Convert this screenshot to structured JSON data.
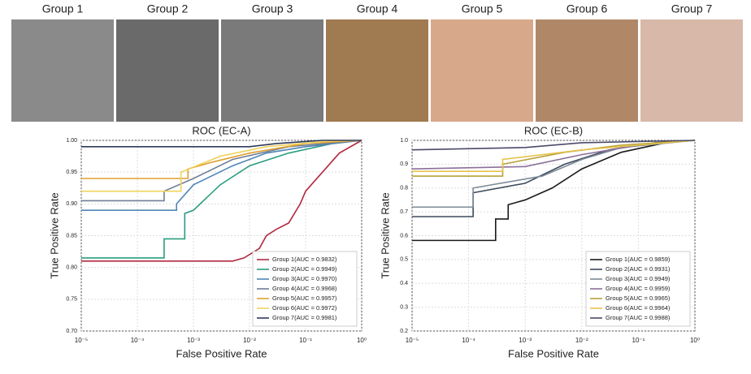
{
  "groups": [
    "Group 1",
    "Group 2",
    "Group 3",
    "Group 4",
    "Group 5",
    "Group 6",
    "Group 7"
  ],
  "chart_data": [
    {
      "type": "line",
      "title": "ROC (EC-A)",
      "xlabel": "False Positive Rate",
      "ylabel": "True Positive Rate",
      "xscale": "log",
      "xlim": [
        1e-05,
        1
      ],
      "ylim": [
        0.7,
        1.0
      ],
      "grid": true,
      "legend": "lower right",
      "xticks": [
        {
          "value": 1e-05,
          "label": "10⁻⁵"
        },
        {
          "value": 0.0001,
          "label": "10⁻⁴"
        },
        {
          "value": 0.001,
          "label": "10⁻³"
        },
        {
          "value": 0.01,
          "label": "10⁻²"
        },
        {
          "value": 0.1,
          "label": "10⁻¹"
        },
        {
          "value": 1,
          "label": "10⁰"
        }
      ],
      "yticks": [
        {
          "value": 0.7,
          "label": "0.70"
        },
        0.75,
        {
          "value": 0.8,
          "label": "0.80"
        },
        0.85,
        {
          "value": 0.9,
          "label": "0.90"
        },
        0.95,
        {
          "value": 1.0,
          "label": "1.00"
        }
      ],
      "series": [
        {
          "name": "Group 1(AUC = 0.9832)",
          "color": "#b3283f",
          "x": [
            1e-05,
            0.005,
            0.008,
            0.015,
            0.02,
            0.03,
            0.05,
            0.08,
            0.1,
            0.2,
            0.4,
            1
          ],
          "values": [
            0.81,
            0.81,
            0.815,
            0.83,
            0.85,
            0.86,
            0.87,
            0.9,
            0.92,
            0.95,
            0.98,
            1.0
          ]
        },
        {
          "name": "Group 2(AUC = 0.9949)",
          "color": "#2a9d7f",
          "x": [
            1e-05,
            0.0003,
            0.0003,
            0.0007,
            0.0007,
            0.001,
            0.003,
            0.01,
            0.05,
            0.3,
            1
          ],
          "values": [
            0.815,
            0.815,
            0.845,
            0.845,
            0.885,
            0.89,
            0.93,
            0.96,
            0.98,
            0.995,
            1.0
          ]
        },
        {
          "name": "Group 3(AUC = 0.9970)",
          "color": "#4f86b8",
          "x": [
            1e-05,
            0.0005,
            0.0005,
            0.001,
            0.005,
            0.02,
            0.1,
            1
          ],
          "values": [
            0.89,
            0.89,
            0.9,
            0.93,
            0.96,
            0.98,
            0.99,
            1.0
          ]
        },
        {
          "name": "Group 4(AUC = 0.9968)",
          "color": "#6f7f96",
          "x": [
            1e-05,
            0.0003,
            0.0003,
            0.001,
            0.005,
            0.05,
            1
          ],
          "values": [
            0.905,
            0.905,
            0.92,
            0.94,
            0.97,
            0.99,
            1.0
          ]
        },
        {
          "name": "Group 5(AUC = 0.9957)",
          "color": "#e0a030",
          "x": [
            1e-05,
            0.0008,
            0.0008,
            0.002,
            0.01,
            0.1,
            1
          ],
          "values": [
            0.94,
            0.94,
            0.955,
            0.965,
            0.98,
            0.995,
            1.0
          ]
        },
        {
          "name": "Group 6(AUC = 0.9972)",
          "color": "#efd35c",
          "x": [
            1e-05,
            0.0006,
            0.0006,
            0.003,
            0.02,
            0.2,
            1
          ],
          "values": [
            0.92,
            0.92,
            0.95,
            0.975,
            0.99,
            0.998,
            1.0
          ]
        },
        {
          "name": "Group 7(AUC = 0.9981)",
          "color": "#2f3a5a",
          "x": [
            1e-05,
            0.01,
            0.03,
            0.2,
            1
          ],
          "values": [
            0.99,
            0.99,
            0.995,
            1.0,
            1.0
          ]
        }
      ]
    },
    {
      "type": "line",
      "title": "ROC (EC-B)",
      "xlabel": "False Positive Rate",
      "ylabel": "True Positive Rate",
      "xscale": "log",
      "xlim": [
        1e-05,
        1
      ],
      "ylim": [
        0.2,
        1.0
      ],
      "grid": true,
      "legend": "lower right",
      "xticks": [
        {
          "value": 1e-05,
          "label": "10⁻⁵"
        },
        {
          "value": 0.0001,
          "label": "10⁻⁴"
        },
        {
          "value": 0.001,
          "label": "10⁻³"
        },
        {
          "value": 0.01,
          "label": "10⁻²"
        },
        {
          "value": 0.1,
          "label": "10⁻¹"
        },
        {
          "value": 1,
          "label": "10⁰"
        }
      ],
      "yticks": [
        0.2,
        0.3,
        0.4,
        0.5,
        0.6,
        0.7,
        0.8,
        0.9,
        {
          "value": 1.0,
          "label": "1.0"
        }
      ],
      "series": [
        {
          "name": "Group 1(AUC = 0.9859)",
          "color": "#1a1a1a",
          "x": [
            1e-05,
            0.0003,
            0.0003,
            0.0005,
            0.0005,
            0.001,
            0.003,
            0.01,
            0.05,
            0.3,
            1
          ],
          "values": [
            0.58,
            0.58,
            0.67,
            0.67,
            0.73,
            0.75,
            0.8,
            0.88,
            0.95,
            0.99,
            1.0
          ]
        },
        {
          "name": "Group 2(AUC = 0.9931)",
          "color": "#3d4a5c",
          "x": [
            1e-05,
            0.00012,
            0.00012,
            0.001,
            0.005,
            0.03,
            0.2,
            1
          ],
          "values": [
            0.68,
            0.68,
            0.78,
            0.82,
            0.9,
            0.96,
            0.99,
            1.0
          ]
        },
        {
          "name": "Group 3(AUC = 0.9949)",
          "color": "#7d8a96",
          "x": [
            1e-05,
            0.00012,
            0.00012,
            0.002,
            0.01,
            0.05,
            1
          ],
          "values": [
            0.72,
            0.72,
            0.8,
            0.85,
            0.92,
            0.97,
            1.0
          ]
        },
        {
          "name": "Group 4(AUC = 0.9959)",
          "color": "#8a6f9a",
          "x": [
            1e-05,
            0.001,
            0.01,
            0.1,
            1
          ],
          "values": [
            0.88,
            0.89,
            0.94,
            0.98,
            1.0
          ]
        },
        {
          "name": "Group 5(AUC = 0.9965)",
          "color": "#b8a23a",
          "x": [
            1e-05,
            0.0004,
            0.0004,
            0.005,
            0.05,
            1
          ],
          "values": [
            0.85,
            0.85,
            0.9,
            0.95,
            0.98,
            1.0
          ]
        },
        {
          "name": "Group 6(AUC = 0.9964)",
          "color": "#e6c24a",
          "x": [
            1e-05,
            0.0004,
            0.0004,
            0.01,
            1
          ],
          "values": [
            0.87,
            0.87,
            0.92,
            0.96,
            1.0
          ]
        },
        {
          "name": "Group 7(AUC = 0.9988)",
          "color": "#4a4a6a",
          "x": [
            1e-05,
            0.001,
            0.01,
            1
          ],
          "values": [
            0.96,
            0.97,
            0.99,
            1.0
          ]
        }
      ]
    }
  ]
}
